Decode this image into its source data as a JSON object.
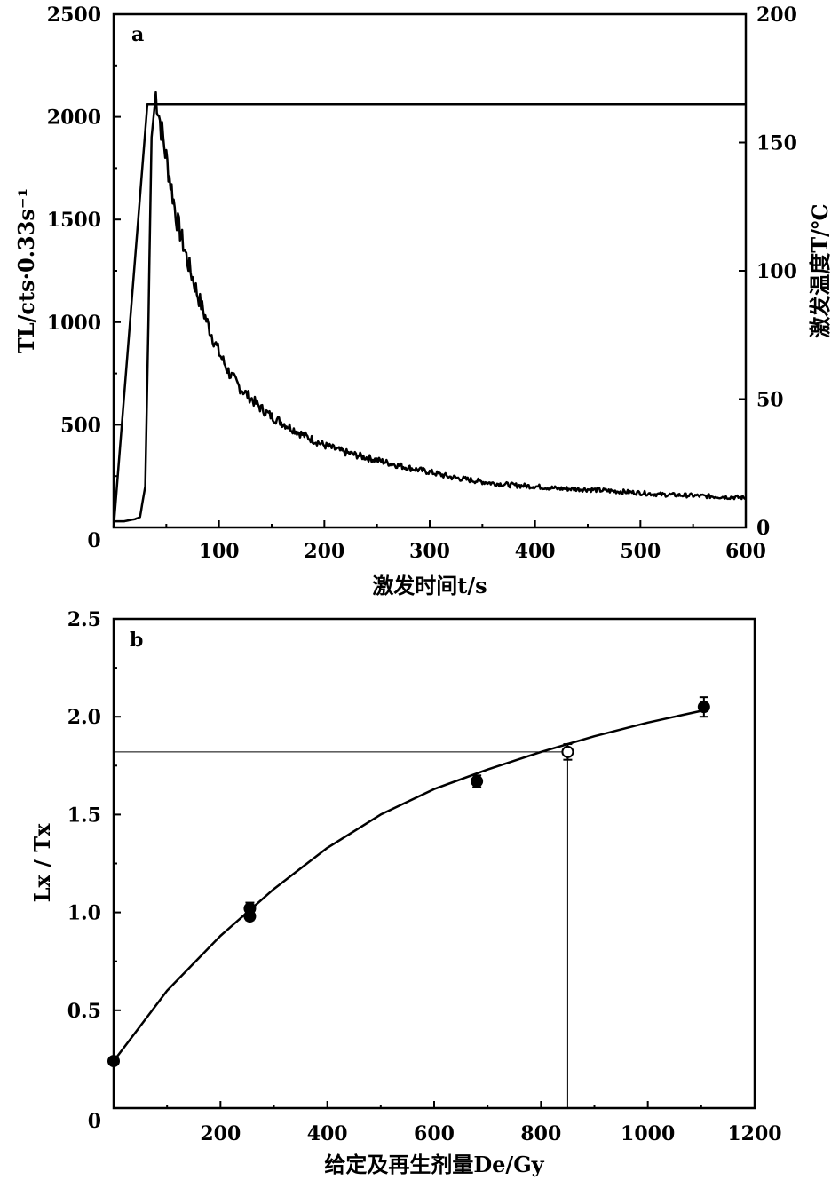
{
  "chart_data": [
    {
      "panel": "a",
      "type": "line",
      "xlabel": "激发时间t/s",
      "ylabel": "TL/cts·0.33s⁻¹",
      "ylabel_right": "激发温度T/℃",
      "xlim": [
        0,
        600
      ],
      "ylim": [
        0,
        2500
      ],
      "ylim_right": [
        0,
        200
      ],
      "x_ticks": [
        100,
        200,
        300,
        400,
        500,
        600
      ],
      "y_ticks": [
        0,
        500,
        1000,
        1500,
        2000,
        2500
      ],
      "y_ticks_right": [
        0,
        50,
        100,
        150,
        200
      ],
      "series": [
        {
          "axis": "left",
          "x": [
            0,
            10,
            20,
            25,
            30,
            33,
            36,
            40,
            45,
            50,
            55,
            60,
            70,
            80,
            90,
            100,
            110,
            120,
            130,
            140,
            150,
            160,
            180,
            200,
            220,
            240,
            260,
            280,
            300,
            320,
            340,
            360,
            380,
            400,
            420,
            450,
            480,
            500,
            520,
            550,
            580,
            600
          ],
          "y": [
            30,
            30,
            40,
            50,
            200,
            1000,
            1900,
            2110,
            1950,
            1800,
            1650,
            1500,
            1300,
            1130,
            980,
            850,
            750,
            680,
            630,
            580,
            540,
            510,
            450,
            400,
            365,
            340,
            315,
            290,
            270,
            245,
            230,
            215,
            205,
            200,
            190,
            185,
            175,
            168,
            160,
            155,
            148,
            145
          ]
        },
        {
          "axis": "right",
          "x": [
            0,
            32,
            600
          ],
          "y": [
            0,
            165,
            165
          ]
        }
      ]
    },
    {
      "panel": "b",
      "type": "scatter",
      "xlabel": "给定及再生剂量De/Gy",
      "ylabel": "Lx / Tx",
      "xlim": [
        0,
        1200
      ],
      "ylim": [
        0,
        2.5
      ],
      "x_ticks": [
        0,
        200,
        400,
        600,
        800,
        1000,
        1200
      ],
      "y_ticks": [
        0,
        0.5,
        1.0,
        1.5,
        2.0,
        2.5
      ],
      "points_filled": [
        {
          "x": 0,
          "y": 0.24,
          "err": 0
        },
        {
          "x": 255,
          "y": 1.02,
          "err": 0.03
        },
        {
          "x": 255,
          "y": 0.98,
          "err": 0.02
        },
        {
          "x": 680,
          "y": 1.67,
          "err": 0.03
        },
        {
          "x": 1105,
          "y": 2.05,
          "err": 0.05
        }
      ],
      "point_open": {
        "x": 850,
        "y": 1.82,
        "err": 0.04
      },
      "fit_curve": {
        "x": [
          0,
          100,
          200,
          300,
          400,
          500,
          600,
          700,
          800,
          900,
          1000,
          1100
        ],
        "y": [
          0.24,
          0.6,
          0.88,
          1.12,
          1.33,
          1.5,
          1.63,
          1.73,
          1.82,
          1.9,
          1.97,
          2.03
        ]
      },
      "reference_lines": {
        "y": 1.82,
        "x": 850
      }
    }
  ]
}
